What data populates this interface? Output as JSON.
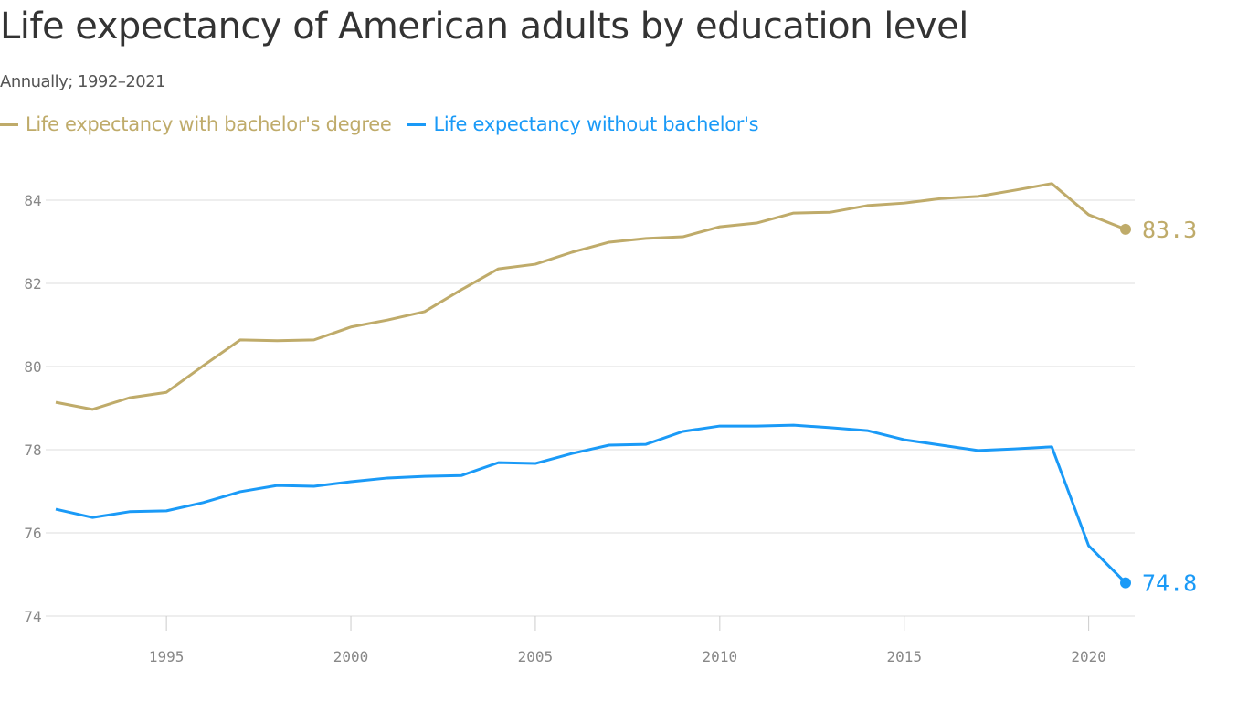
{
  "chart_data": {
    "type": "line",
    "title": "Life expectancy of American adults by education level",
    "subtitle": "Annually; 1992–2021",
    "x": [
      1992,
      1993,
      1994,
      1995,
      1996,
      1997,
      1998,
      1999,
      2000,
      2001,
      2002,
      2003,
      2004,
      2005,
      2006,
      2007,
      2008,
      2009,
      2010,
      2011,
      2012,
      2013,
      2014,
      2015,
      2016,
      2017,
      2018,
      2019,
      2020,
      2021
    ],
    "series": [
      {
        "name": "Life expectancy with bachelor's degree",
        "color": "#bfab6a",
        "end_label": "83.3",
        "values": [
          79.14,
          78.97,
          79.25,
          79.38,
          80.02,
          80.64,
          80.62,
          80.64,
          80.95,
          81.12,
          81.32,
          81.85,
          82.35,
          82.46,
          82.75,
          82.99,
          83.08,
          83.12,
          83.36,
          83.45,
          83.69,
          83.71,
          83.87,
          83.93,
          84.04,
          84.09,
          84.24,
          84.4,
          83.65,
          83.3
        ]
      },
      {
        "name": "Life expectancy without bachelor's",
        "color": "#1a9af7",
        "end_label": "74.8",
        "values": [
          76.57,
          76.37,
          76.51,
          76.53,
          76.73,
          76.99,
          77.14,
          77.12,
          77.23,
          77.32,
          77.36,
          77.38,
          77.69,
          77.67,
          77.91,
          78.11,
          78.13,
          78.44,
          78.57,
          78.57,
          78.59,
          78.53,
          78.46,
          78.24,
          78.11,
          77.98,
          78.02,
          78.07,
          75.69,
          74.8
        ]
      }
    ],
    "y_ticks": [
      "74",
      "76",
      "78",
      "80",
      "82",
      "84"
    ],
    "x_ticks": [
      "1995",
      "2000",
      "2005",
      "2010",
      "2015",
      "2020"
    ],
    "ylim": [
      74,
      85
    ],
    "xlim": [
      1992,
      2021
    ],
    "grid": "horizontal",
    "legend_placement": "top-left"
  }
}
